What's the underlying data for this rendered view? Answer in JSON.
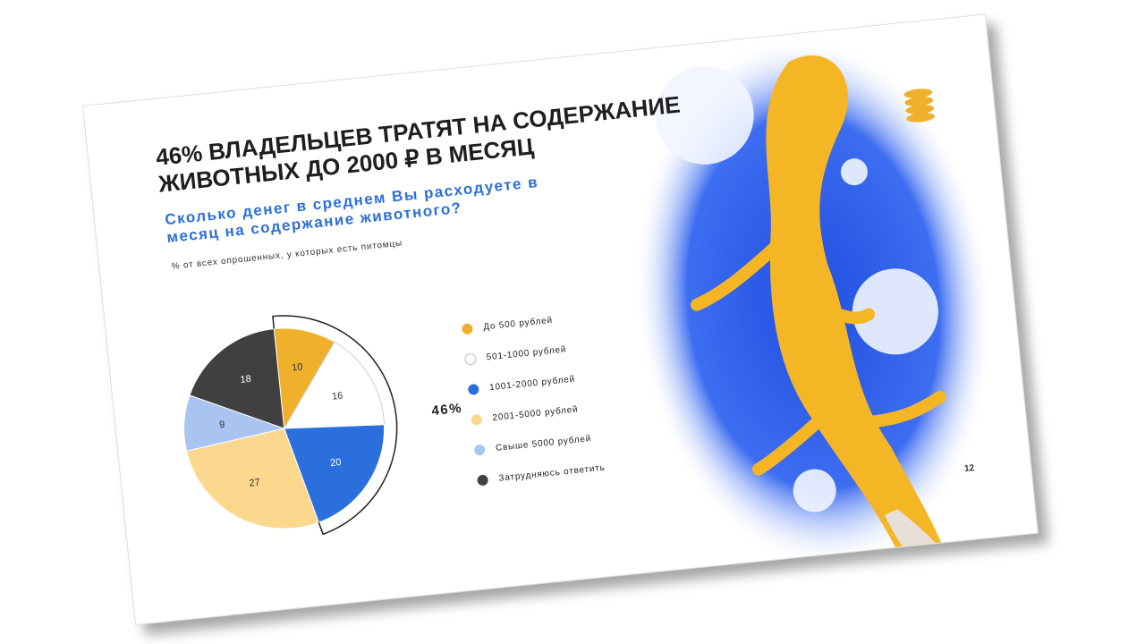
{
  "chart_data": {
    "type": "pie",
    "title": "46% ВЛАДЕЛЬЦЕВ ТРАТЯТ НА СОДЕРЖАНИЕ ЖИВОТНЫХ ДО 2000 ₽ В МЕСЯЦ",
    "subtitle": "Сколько денег в среднем Вы расходуете в месяц на содержание животного?",
    "note": "% от всех опрошенных, у которых есть питомцы",
    "categories": [
      "До 500 рублей",
      "501-1000 рублей",
      "1001-2000 рублей",
      "2001-5000 рублей",
      "Свыше 5000 рублей",
      "Затрудняюсь ответить"
    ],
    "values": [
      10,
      16,
      20,
      27,
      9,
      18
    ],
    "colors": [
      "#f0b02c",
      "#ffffff",
      "#2a6fdb",
      "#fad88e",
      "#aac4f2",
      "#404040"
    ],
    "annotation": "46%",
    "page_number": "12"
  }
}
